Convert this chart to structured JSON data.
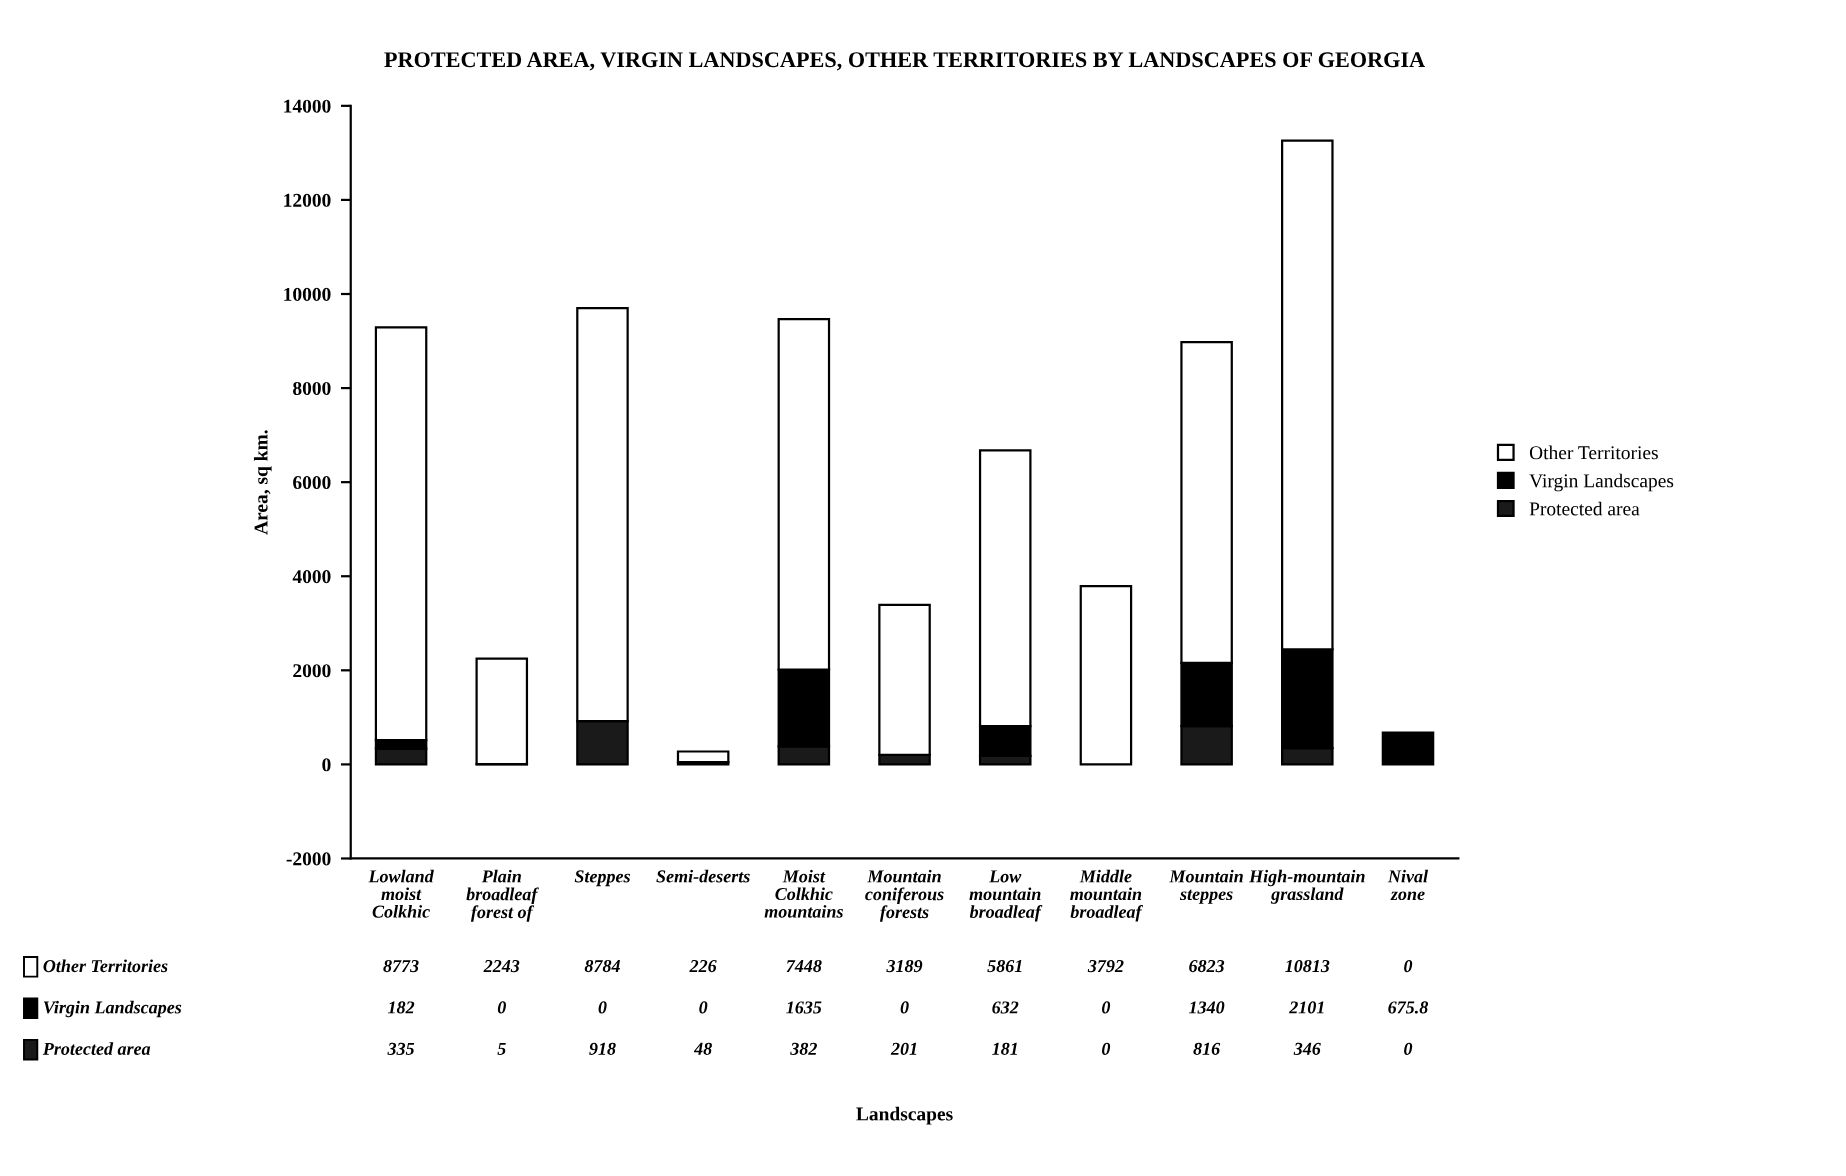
{
  "chart_data": {
    "type": "bar",
    "stacked": true,
    "title": "PROTECTED AREA, VIRGIN LANDSCAPES, OTHER TERRITORIES BY LANDSCAPES OF GEORGIA",
    "annotations": [
      "Landscapes"
    ],
    "ylabel": "Area, sq km.",
    "categories": [
      "Lowland moist Colkhic",
      "Plain broadleaf forest of",
      "Steppes",
      "Semi-deserts",
      "Moist Colkhic mountains",
      "Mountain coniferous forests",
      "Low mountain broadleaf",
      "Middle mountain broadleaf",
      "Mountain steppes",
      "High-mountain grassland",
      "Nival zone"
    ],
    "series": [
      {
        "name": "Protected area",
        "color": "#1a1a1a",
        "values": [
          335,
          5,
          918,
          48,
          382,
          201,
          181,
          0,
          816,
          346,
          0
        ]
      },
      {
        "name": "Virgin Landscapes",
        "color": "#000000",
        "values": [
          182,
          0,
          0,
          0,
          1635,
          0,
          632,
          0,
          1340,
          2101,
          675.8
        ]
      },
      {
        "name": "Other Territories",
        "color": "#ffffff",
        "values": [
          8773,
          2243,
          8784,
          226,
          7448,
          3189,
          5861,
          3792,
          6823,
          10813,
          0
        ]
      }
    ],
    "ylim": [
      -2000,
      14000
    ],
    "yticks": [
      -2000,
      0,
      2000,
      4000,
      6000,
      8000,
      10000,
      12000,
      14000
    ],
    "grid": false,
    "legend": "right",
    "data_labels": true
  }
}
